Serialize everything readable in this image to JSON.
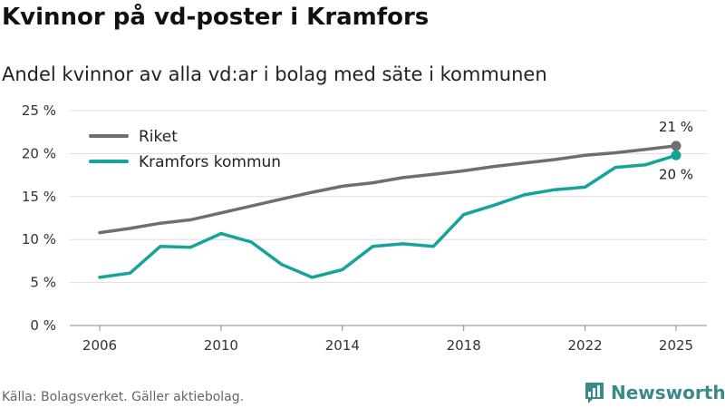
{
  "header": {
    "title": "Kvinnor på vd-poster i Kramfors",
    "subtitle": "Andel kvinnor av alla vd:ar i bolag med säte i kommunen"
  },
  "footer": {
    "source": "Källa: Bolagsverket. Gäller aktiebolag.",
    "brand": "Newsworthy"
  },
  "colors": {
    "riket": "#6e6e70",
    "kramfors": "#15a39a",
    "grid": "#dddddd",
    "brand": "#3a8a8c"
  },
  "chart_data": {
    "type": "line",
    "title": "Kvinnor på vd-poster i Kramfors",
    "subtitle": "Andel kvinnor av alla vd:ar i bolag med säte i kommunen",
    "xlabel": "",
    "ylabel": "",
    "xlim": [
      2006,
      2025
    ],
    "ylim": [
      0,
      25
    ],
    "x_ticks": [
      2006,
      2010,
      2014,
      2018,
      2022,
      2025
    ],
    "x_tick_labels": [
      "2006",
      "2010",
      "2014",
      "2018",
      "2022",
      "2025"
    ],
    "y_ticks": [
      0,
      5,
      10,
      15,
      20,
      25
    ],
    "y_tick_labels": [
      "0 %",
      "5 %",
      "10 %",
      "15 %",
      "20 %",
      "25 %"
    ],
    "grid": true,
    "legend_position": "top-left",
    "x": [
      2006,
      2007,
      2008,
      2009,
      2010,
      2011,
      2012,
      2013,
      2014,
      2015,
      2016,
      2017,
      2018,
      2019,
      2020,
      2021,
      2022,
      2023,
      2024,
      2025
    ],
    "series": [
      {
        "name": "Riket",
        "values": [
          10.8,
          11.3,
          11.9,
          12.3,
          13.1,
          13.9,
          14.7,
          15.5,
          16.2,
          16.6,
          17.2,
          17.6,
          18.0,
          18.5,
          18.9,
          19.3,
          19.8,
          20.1,
          20.5,
          20.9
        ],
        "end_label": "21 %"
      },
      {
        "name": "Kramfors kommun",
        "values": [
          5.6,
          6.1,
          9.2,
          9.1,
          10.7,
          9.7,
          7.1,
          5.6,
          6.5,
          9.2,
          9.5,
          9.2,
          12.9,
          14.0,
          15.2,
          15.8,
          16.1,
          18.4,
          18.7,
          19.8
        ],
        "end_label": "20 %"
      }
    ]
  }
}
